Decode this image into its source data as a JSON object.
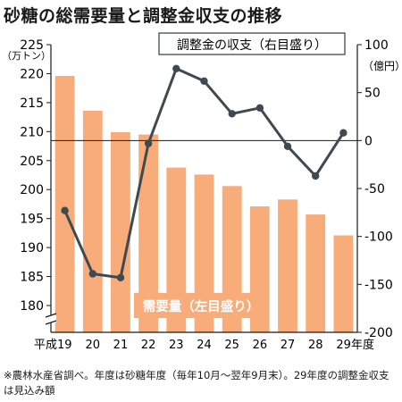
{
  "title": "砂糖の総需要量と調整金収支の推移",
  "note": "※農林水産省調べ。年度は砂糖年度（毎年10月～翌年9月末）。29年度の調整金収支は見込み額",
  "colors": {
    "bar": "#f7ac7a",
    "line": "#3e4a50",
    "axis": "#1a1a1a",
    "zero_line": "#1a1a1a"
  },
  "chart_data": {
    "type": "bar+line",
    "categories": [
      "19",
      "20",
      "21",
      "22",
      "23",
      "24",
      "25",
      "26",
      "27",
      "28",
      "29"
    ],
    "x_tick_labels": [
      "平成19",
      "20",
      "21",
      "22",
      "23",
      "24",
      "25",
      "26",
      "27",
      "28",
      "29年度"
    ],
    "left_axis": {
      "unit": "（万トン）",
      "range": [
        180,
        225
      ],
      "ticks": [
        180,
        185,
        190,
        195,
        200,
        205,
        210,
        215,
        220,
        225
      ],
      "axis_break": true
    },
    "right_axis": {
      "unit": "（億円）",
      "range": [
        -200,
        100
      ],
      "ticks": [
        -200,
        -150,
        -100,
        -50,
        0,
        50,
        100
      ]
    },
    "series": [
      {
        "name": "需要量（左目盛り）",
        "type": "bar",
        "axis": "left",
        "values": [
          219.6,
          213.6,
          209.9,
          209.5,
          203.8,
          202.6,
          200.6,
          197.1,
          198.3,
          195.7,
          192.1
        ]
      },
      {
        "name": "調整金の収支（右目盛り）",
        "type": "line",
        "axis": "right",
        "values": [
          -73,
          -139,
          -143,
          -3,
          75,
          62,
          28,
          34,
          -6,
          -37,
          8
        ]
      }
    ],
    "zero_line": true,
    "grid": false
  }
}
